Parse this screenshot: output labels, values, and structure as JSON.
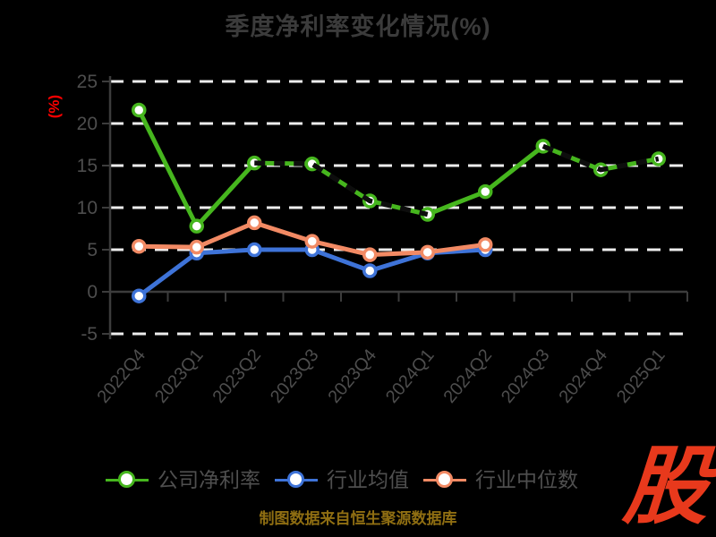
{
  "title": "季度净利率变化情况(%)",
  "y_axis_label": "(%)",
  "footer_note": "制图数据来自恒生聚源数据库",
  "logo_text": "股",
  "colors": {
    "background": "#000000",
    "title": "#3b3b3b",
    "axis": "#3c3c3c",
    "gridline": "#ededed",
    "tick_label": "#4d4d4d",
    "y_axis_label": "#ff0000",
    "legend_text": "#4f4f4f",
    "footer_text": "#8f6e12",
    "logo_red": "#e8391c",
    "marker_fill": "#ffffff",
    "overlay_dash": "#0d0d0d"
  },
  "chart_data": {
    "type": "line",
    "title": "季度净利率变化情况(%)",
    "ylabel": "(%)",
    "categories": [
      "2022Q4",
      "2023Q1",
      "2023Q2",
      "2023Q3",
      "2023Q4",
      "2024Q1",
      "2024Q2",
      "2024Q3",
      "2024Q4",
      "2025Q1"
    ],
    "series": [
      {
        "name": "公司净利率",
        "color": "#46b61e",
        "values": [
          21.6,
          7.8,
          15.3,
          15.2,
          10.8,
          9.2,
          11.9,
          17.3,
          14.5,
          15.8
        ]
      },
      {
        "name": "行业均值",
        "color": "#3e73d8",
        "values": [
          -0.5,
          4.6,
          5.0,
          5.0,
          2.5,
          4.6,
          5.0,
          null,
          null,
          null
        ]
      },
      {
        "name": "行业中位数",
        "color": "#f28a64",
        "values": [
          5.4,
          5.3,
          8.2,
          6.0,
          4.4,
          4.7,
          5.6,
          null,
          null,
          null
        ]
      }
    ],
    "overlay_dashed_segments": [
      [
        2,
        3,
        4,
        5
      ],
      [
        7,
        8,
        9
      ]
    ],
    "yticks": [
      25,
      20,
      15,
      10,
      5,
      0,
      -5
    ],
    "ylim": [
      -5,
      25
    ],
    "grid": "horizontal-dashed-white",
    "legend_position": "bottom",
    "x_label_rotation_deg": -50
  },
  "legend": {
    "items": [
      {
        "label": "公司净利率",
        "color": "#46b61e"
      },
      {
        "label": "行业均值",
        "color": "#3e73d8"
      },
      {
        "label": "行业中位数",
        "color": "#f28a64"
      }
    ]
  }
}
